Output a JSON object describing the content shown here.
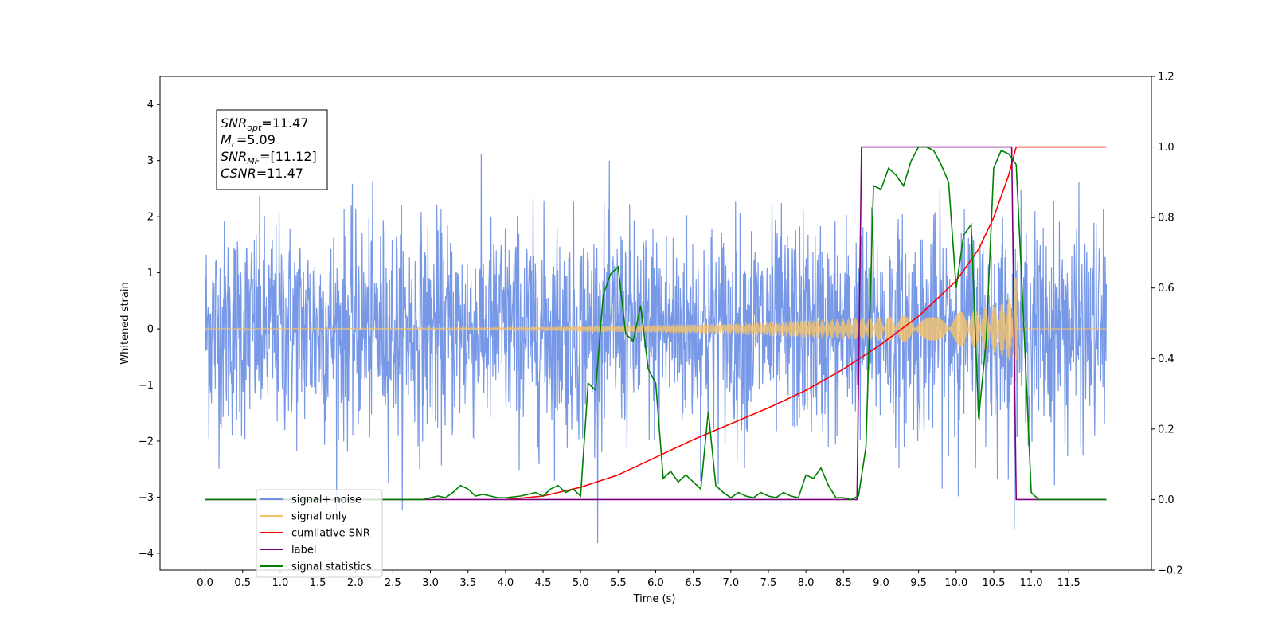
{
  "chart_data": {
    "type": "line",
    "xlabel": "Time (s)",
    "ylabel": "Whitened strain",
    "xlim": [
      -0.6,
      12.6
    ],
    "ylim": [
      -4.3,
      4.5
    ],
    "y2lim": [
      -0.2,
      1.2
    ],
    "x_ticks": [
      0.0,
      0.5,
      1.0,
      1.5,
      2.0,
      2.5,
      3.0,
      3.5,
      4.0,
      4.5,
      5.0,
      5.5,
      6.0,
      6.5,
      7.0,
      7.5,
      8.0,
      8.5,
      9.0,
      9.5,
      10.0,
      10.5,
      11.0,
      11.5
    ],
    "y_ticks": [
      -4,
      -3,
      -2,
      -1,
      0,
      1,
      2,
      3,
      4
    ],
    "y2_ticks": [
      -0.2,
      0.0,
      0.2,
      0.4,
      0.6,
      0.8,
      1.0,
      1.2
    ],
    "grid": false,
    "legend_position": "lower-left",
    "annotation": {
      "lines": [
        {
          "var": "SNR",
          "sub": "opt",
          "val": "=11.47"
        },
        {
          "var": "M",
          "sub": "c",
          "val": "=5.09"
        },
        {
          "var": "SNR",
          "sub": "MF",
          "val": "=[11.12]"
        },
        {
          "var": "CSNR",
          "sub": "",
          "val": "=11.47"
        }
      ]
    },
    "series": [
      {
        "name": "signal+ noise",
        "axis": "left",
        "color": "#7092e6",
        "kind": "noise",
        "x_range": [
          0,
          12.0
        ],
        "envelope": 2.3,
        "peak": 4.1
      },
      {
        "name": "signal only",
        "axis": "left",
        "color": "#f5c36b",
        "kind": "chirp",
        "x_range": [
          0,
          12.0
        ],
        "coalescence": 10.8,
        "amplitude": {
          "x": [
            0,
            2,
            4,
            5,
            6,
            7,
            8,
            9,
            9.5,
            10,
            10.3,
            10.5,
            10.6,
            10.7,
            10.75,
            10.8,
            10.82
          ],
          "y": [
            0.005,
            0.01,
            0.02,
            0.05,
            0.07,
            0.1,
            0.15,
            0.21,
            0.25,
            0.3,
            0.35,
            0.42,
            0.47,
            0.55,
            0.7,
            1.0,
            0.0
          ]
        }
      },
      {
        "name": "cumilative SNR",
        "axis": "right",
        "color": "#ff0000",
        "x": [
          4.0,
          4.5,
          5.0,
          5.5,
          6.0,
          6.5,
          7.0,
          7.5,
          8.0,
          8.5,
          9.0,
          9.5,
          10.0,
          10.3,
          10.5,
          10.7,
          10.8,
          10.85,
          12.0
        ],
        "y": [
          0.0,
          0.01,
          0.035,
          0.07,
          0.12,
          0.17,
          0.215,
          0.26,
          0.31,
          0.37,
          0.44,
          0.52,
          0.62,
          0.71,
          0.8,
          0.92,
          1.0,
          1.0,
          1.0
        ]
      },
      {
        "name": "label",
        "axis": "right",
        "color": "#800080",
        "x": [
          0.0,
          8.68,
          8.74,
          10.74,
          10.8,
          12.0
        ],
        "y": [
          0.0,
          0.0,
          1.0,
          1.0,
          0.0,
          0.0
        ]
      },
      {
        "name": "signal statistics",
        "axis": "right",
        "color": "#008000",
        "x": [
          0.0,
          2.9,
          3.0,
          3.1,
          3.2,
          3.3,
          3.4,
          3.5,
          3.6,
          3.7,
          3.8,
          3.9,
          4.0,
          4.2,
          4.4,
          4.5,
          4.6,
          4.7,
          4.8,
          4.9,
          5.0,
          5.1,
          5.2,
          5.3,
          5.4,
          5.5,
          5.6,
          5.7,
          5.8,
          5.9,
          6.0,
          6.1,
          6.2,
          6.3,
          6.4,
          6.5,
          6.6,
          6.7,
          6.8,
          6.9,
          7.0,
          7.1,
          7.2,
          7.3,
          7.4,
          7.5,
          7.6,
          7.7,
          7.8,
          7.9,
          8.0,
          8.1,
          8.2,
          8.3,
          8.4,
          8.5,
          8.6,
          8.7,
          8.8,
          8.9,
          9.0,
          9.1,
          9.2,
          9.3,
          9.4,
          9.5,
          9.6,
          9.7,
          9.8,
          9.9,
          10.0,
          10.1,
          10.2,
          10.3,
          10.4,
          10.5,
          10.6,
          10.7,
          10.8,
          10.9,
          11.0,
          11.1,
          11.2,
          12.0
        ],
        "y": [
          0.0,
          0.0,
          0.005,
          0.01,
          0.005,
          0.02,
          0.04,
          0.03,
          0.01,
          0.015,
          0.01,
          0.005,
          0.005,
          0.01,
          0.02,
          0.01,
          0.03,
          0.04,
          0.02,
          0.03,
          0.01,
          0.33,
          0.31,
          0.58,
          0.64,
          0.66,
          0.47,
          0.45,
          0.55,
          0.37,
          0.33,
          0.06,
          0.08,
          0.05,
          0.07,
          0.05,
          0.03,
          0.25,
          0.04,
          0.02,
          0.005,
          0.02,
          0.01,
          0.005,
          0.02,
          0.01,
          0.005,
          0.02,
          0.01,
          0.005,
          0.07,
          0.06,
          0.09,
          0.04,
          0.005,
          0.005,
          0.0,
          0.01,
          0.15,
          0.89,
          0.88,
          0.94,
          0.92,
          0.89,
          0.96,
          1.0,
          1.0,
          0.99,
          0.95,
          0.9,
          0.6,
          0.75,
          0.78,
          0.23,
          0.45,
          0.94,
          0.99,
          0.98,
          0.95,
          0.5,
          0.02,
          0.0,
          0.0,
          0.0
        ]
      }
    ],
    "legend": [
      {
        "label": "signal+ noise",
        "color": "#7092e6"
      },
      {
        "label": "signal only",
        "color": "#f5c36b"
      },
      {
        "label": "cumilative SNR",
        "color": "#ff0000"
      },
      {
        "label": "label",
        "color": "#800080"
      },
      {
        "label": "signal statistics",
        "color": "#008000"
      }
    ]
  }
}
